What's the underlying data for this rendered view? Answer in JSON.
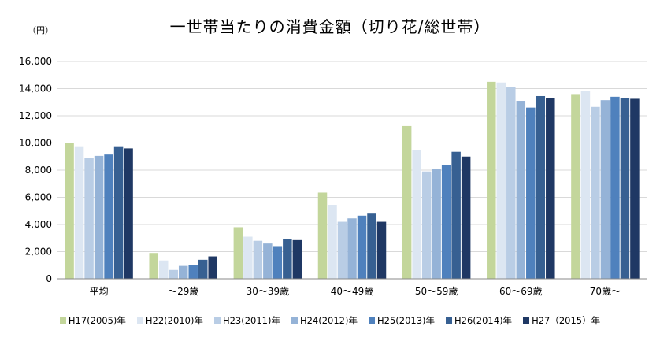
{
  "chart_data": {
    "type": "bar",
    "title": "一世帯当たりの消費金額（切り花/総世帯）",
    "unit_label": "（円）",
    "categories": [
      "平均",
      "～29歳",
      "30～39歳",
      "40～49歳",
      "50～59歳",
      "60～69歳",
      "70歳～"
    ],
    "ylim": [
      0,
      16000
    ],
    "yticks": [
      0,
      2000,
      4000,
      6000,
      8000,
      10000,
      12000,
      14000,
      16000
    ],
    "ytick_labels": [
      "0",
      "2,000",
      "4,000",
      "6,000",
      "8,000",
      "10,000",
      "12,000",
      "14,000",
      "16,000"
    ],
    "grid": true,
    "legend_position": "bottom",
    "series": [
      {
        "name": "H17(2005)年",
        "color": "#c3d69b",
        "values": [
          10000,
          1900,
          3800,
          6350,
          11250,
          14500,
          13600
        ]
      },
      {
        "name": "H22(2010)年",
        "color": "#dce6f2",
        "values": [
          9700,
          1350,
          3100,
          5450,
          9450,
          14450,
          13800
        ]
      },
      {
        "name": "H23(2011)年",
        "color": "#b9cde5",
        "values": [
          8900,
          650,
          2800,
          4200,
          7900,
          14100,
          12650
        ]
      },
      {
        "name": "H24(2012)年",
        "color": "#95b3d7",
        "values": [
          9050,
          950,
          2600,
          4450,
          8100,
          13100,
          13150
        ]
      },
      {
        "name": "H25(2013)年",
        "color": "#4f81bd",
        "values": [
          9150,
          1000,
          2350,
          4650,
          8350,
          12600,
          13400
        ]
      },
      {
        "name": "H26(2014)年",
        "color": "#376092",
        "values": [
          9700,
          1400,
          2900,
          4800,
          9350,
          13450,
          13300
        ]
      },
      {
        "name": "H27（2015）年",
        "color": "#1f3864",
        "values": [
          9600,
          1650,
          2850,
          4200,
          9000,
          13300,
          13250
        ]
      }
    ]
  }
}
